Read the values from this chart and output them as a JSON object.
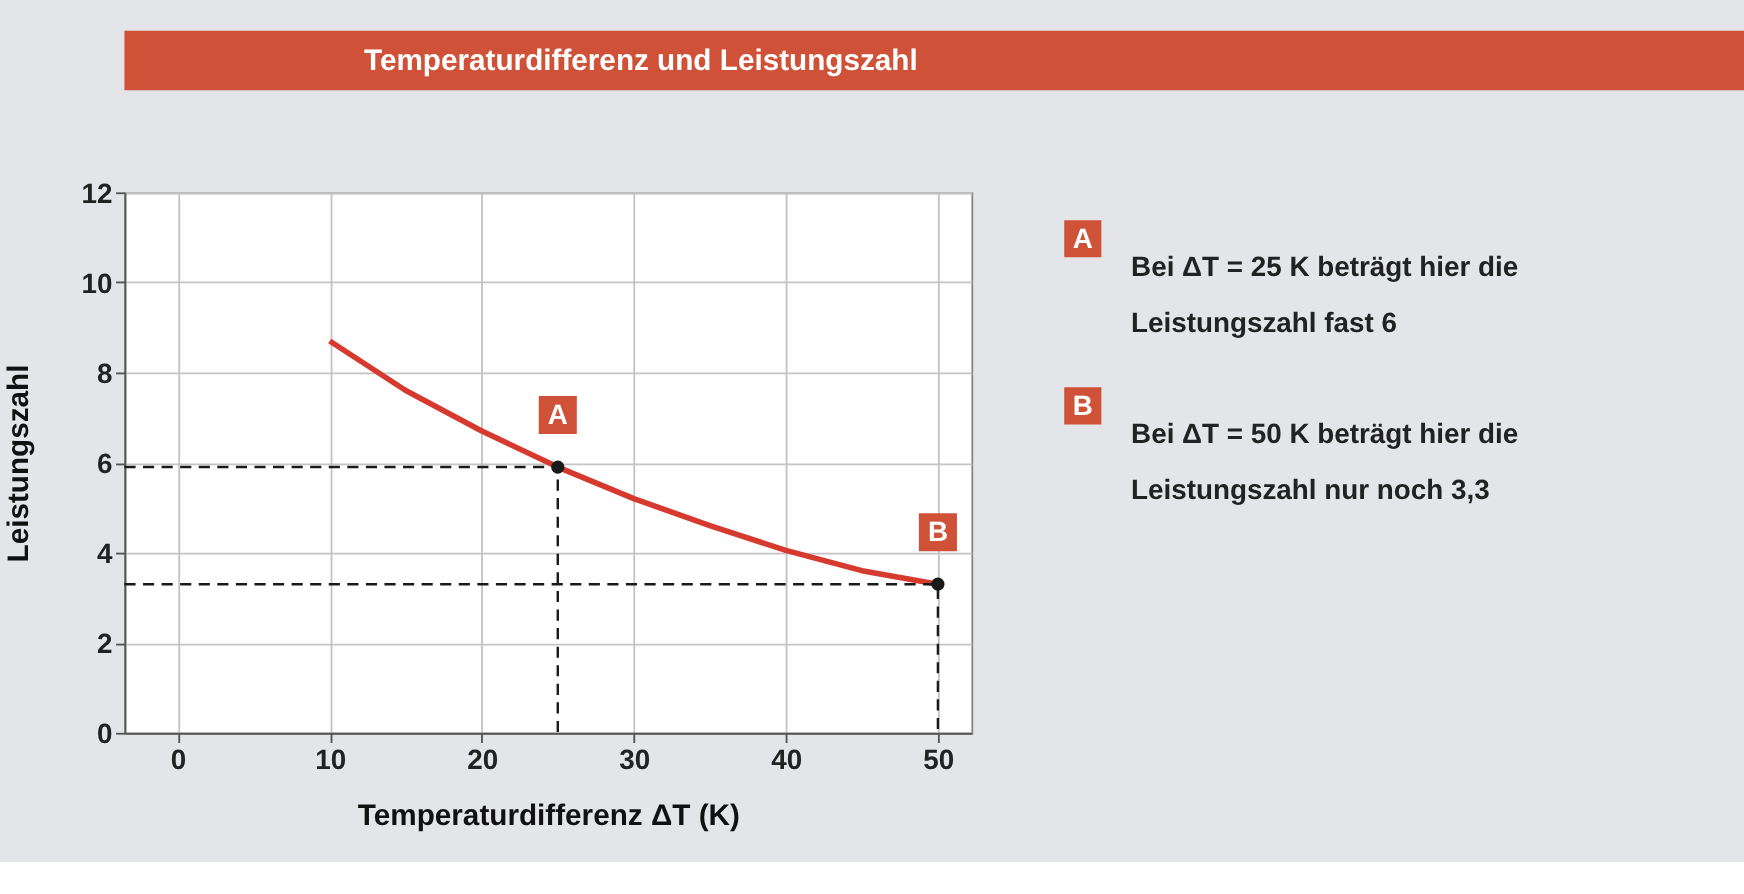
{
  "chart_data": {
    "type": "line",
    "title": "Temperaturdifferenz und Leistungszahl",
    "xlabel": "Temperaturdifferenz ΔT (K)",
    "ylabel": "Leistungszahl",
    "xlim": [
      -3.5,
      52.2
    ],
    "ylim": [
      0,
      12
    ],
    "xticks": [
      0,
      10,
      20,
      30,
      40,
      50
    ],
    "yticks": [
      0,
      2,
      4,
      6,
      8,
      10,
      12
    ],
    "grid": true,
    "series": [
      {
        "color": "#d63a2f",
        "x": [
          10,
          15,
          20,
          25,
          30,
          35,
          40,
          45,
          50
        ],
        "values": [
          8.7,
          7.6,
          6.7,
          5.9,
          5.2,
          4.6,
          4.05,
          3.6,
          3.3
        ]
      },
      {
        "type": "line",
        "color": "#1a1a1a",
        "line_style": "dashed",
        "x": [
          -3.5,
          25,
          25
        ],
        "values": [
          5.9,
          5.9,
          0
        ]
      },
      {
        "type": "line",
        "color": "#1a1a1a",
        "line_style": "dashed",
        "x": [
          -3.5,
          50,
          50
        ],
        "values": [
          3.3,
          3.3,
          0
        ]
      },
      {
        "type": "scatter",
        "color": "#1a1a1a",
        "marker": "circle",
        "x": [
          25,
          50
        ],
        "values": [
          5.9,
          3.3
        ]
      }
    ],
    "annotations": [
      {
        "text": "A",
        "x": 25,
        "y": 5.9
      },
      {
        "text": "B",
        "x": 50,
        "y": 3.3
      },
      "Bei ΔT = 25 K beträgt hier die Leistungszahl fast 6",
      "Bei ΔT = 50 K beträgt hier die Leistungszahl nur noch 3,3"
    ]
  }
}
